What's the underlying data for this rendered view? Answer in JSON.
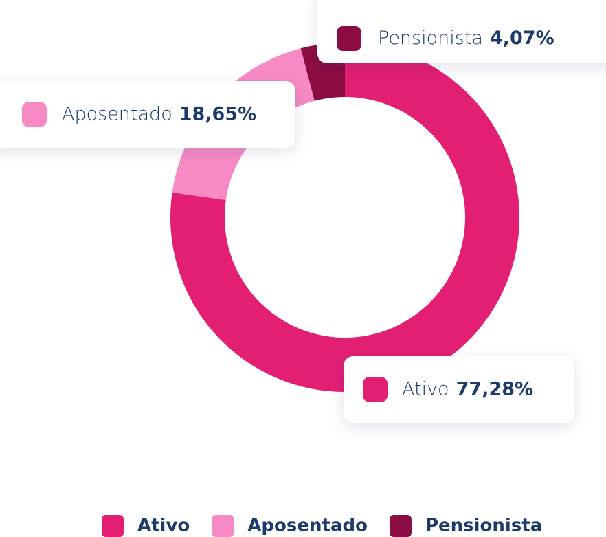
{
  "chart_data": {
    "type": "donut",
    "categories": [
      "Ativo",
      "Aposentado",
      "Pensionista"
    ],
    "values": [
      77.28,
      18.65,
      4.07
    ],
    "value_labels": [
      "77,28%",
      "18,65%",
      "4,07%"
    ],
    "colors": [
      "#e31f74",
      "#f78ac4",
      "#8b0c42"
    ],
    "legend": "bottom"
  }
}
